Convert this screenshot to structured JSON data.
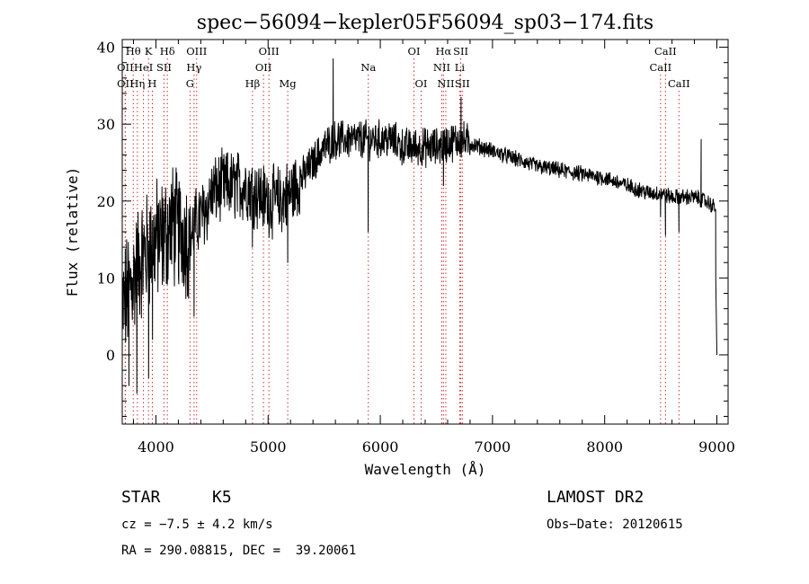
{
  "chart_data": {
    "type": "line",
    "title": "spec−56094−kepler05F56094_sp03−174.fits",
    "xlabel": "Wavelength (Å)",
    "ylabel": "Flux (relative)",
    "xlim": [
      3700,
      9100
    ],
    "ylim": [
      -9,
      41
    ],
    "x_ticks": [
      4000,
      5000,
      6000,
      7000,
      8000,
      9000
    ],
    "y_ticks": [
      0,
      10,
      20,
      30,
      40
    ],
    "grid": false,
    "line_color": "#000000",
    "marker_color": "#cc3333",
    "continuum": {
      "x": [
        3700,
        3750,
        3800,
        3850,
        3900,
        3950,
        4000,
        4050,
        4100,
        4150,
        4200,
        4250,
        4300,
        4350,
        4400,
        4450,
        4500,
        4600,
        4700,
        4800,
        4900,
        5000,
        5100,
        5200,
        5300,
        5400,
        5500,
        5600,
        5700,
        5800,
        5900,
        6000,
        6100,
        6200,
        6300,
        6400,
        6500,
        6600,
        6700,
        6800,
        7000,
        7200,
        7400,
        7600,
        7800,
        8000,
        8200,
        8400,
        8500,
        8600,
        8700,
        8800,
        8900,
        9000
      ],
      "y": [
        6,
        8,
        10,
        12,
        13,
        14,
        15,
        15,
        16,
        17,
        16,
        16,
        15,
        17,
        18,
        19,
        21,
        22,
        22,
        22,
        21,
        20,
        20,
        21,
        23,
        25,
        27,
        28,
        28,
        28,
        28,
        28,
        28,
        27,
        27,
        27,
        27,
        27.5,
        28,
        27.5,
        26.5,
        25.5,
        24.5,
        24,
        23.5,
        23,
        22,
        21,
        21,
        20.5,
        20.5,
        20.5,
        20,
        19
      ]
    },
    "noise_by_range": [
      {
        "from": 3700,
        "to": 4300,
        "amp": 7
      },
      {
        "from": 4300,
        "to": 5300,
        "amp": 4
      },
      {
        "from": 5300,
        "to": 6800,
        "amp": 2.2
      },
      {
        "from": 6800,
        "to": 9000,
        "amp": 0.9
      }
    ],
    "features": [
      {
        "x": 3760,
        "y": -4
      },
      {
        "x": 3830,
        "y": -5
      },
      {
        "x": 3935,
        "y": -3
      },
      {
        "x": 3970,
        "y": 2
      },
      {
        "x": 4340,
        "y": 5
      },
      {
        "x": 4860,
        "y": 14
      },
      {
        "x": 5175,
        "y": 12
      },
      {
        "x": 5580,
        "y": 38.5
      },
      {
        "x": 5892,
        "y": 16
      },
      {
        "x": 6563,
        "y": 22
      },
      {
        "x": 6720,
        "y": 33.5
      },
      {
        "x": 8498,
        "y": 18
      },
      {
        "x": 8542,
        "y": 15.5
      },
      {
        "x": 8662,
        "y": 16
      },
      {
        "x": 8860,
        "y": 28
      },
      {
        "x": 8990,
        "y": 10
      },
      {
        "x": 9000,
        "y": 0
      }
    ],
    "line_markers": [
      {
        "label": "Hθ",
        "x": 3798,
        "row": 1
      },
      {
        "label": "K",
        "x": 3934,
        "row": 1
      },
      {
        "label": "Hδ",
        "x": 4102,
        "row": 1
      },
      {
        "label": "OIII",
        "x": 4363,
        "row": 1
      },
      {
        "label": "OIII",
        "x": 5007,
        "row": 1
      },
      {
        "label": "OI",
        "x": 6300,
        "row": 1
      },
      {
        "label": "Hα",
        "x": 6563,
        "row": 1
      },
      {
        "label": "SII",
        "x": 6717,
        "row": 1
      },
      {
        "label": "CaII",
        "x": 8542,
        "row": 1
      },
      {
        "label": "OII",
        "x": 3727,
        "row": 2
      },
      {
        "label": "HeI",
        "x": 3889,
        "row": 2
      },
      {
        "label": "SII",
        "x": 4072,
        "row": 2
      },
      {
        "label": "Hγ",
        "x": 4340,
        "row": 2
      },
      {
        "label": "OII",
        "x": 4959,
        "row": 2
      },
      {
        "label": "Na",
        "x": 5893,
        "row": 2
      },
      {
        "label": "NII",
        "x": 6548,
        "row": 2
      },
      {
        "label": "Li",
        "x": 6708,
        "row": 2
      },
      {
        "label": "CaII",
        "x": 8498,
        "row": 2
      },
      {
        "label": "OII",
        "x": 3727,
        "row": 3
      },
      {
        "label": "Hη",
        "x": 3835,
        "row": 3
      },
      {
        "label": "H",
        "x": 3968,
        "row": 3
      },
      {
        "label": "G",
        "x": 4304,
        "row": 3
      },
      {
        "label": "Hβ",
        "x": 4861,
        "row": 3
      },
      {
        "label": "Mg",
        "x": 5175,
        "row": 3
      },
      {
        "label": "OI",
        "x": 6364,
        "row": 3
      },
      {
        "label": "NII",
        "x": 6584,
        "row": 3
      },
      {
        "label": "SII",
        "x": 6731,
        "row": 3
      },
      {
        "label": "CaII",
        "x": 8662,
        "row": 3
      }
    ]
  },
  "info": {
    "class_label": "STAR",
    "subclass": "K5",
    "survey": "LAMOST DR2",
    "redshift": "cz = −7.5 ± 4.2 km/s",
    "obs_date": "Obs−Date: 20120615",
    "coords": "RA = 290.08815, DEC =  39.20061"
  }
}
